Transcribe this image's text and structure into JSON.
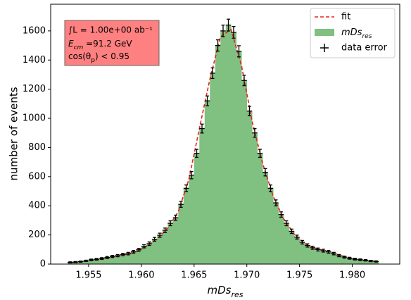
{
  "chart_data": {
    "type": "histogram",
    "bins": [
      1.953,
      1.9535,
      1.954,
      1.9545,
      1.955,
      1.9555,
      1.956,
      1.9565,
      1.957,
      1.9575,
      1.958,
      1.9585,
      1.959,
      1.9595,
      1.96,
      1.9605,
      1.961,
      1.9615,
      1.962,
      1.9625,
      1.963,
      1.9635,
      1.964,
      1.9645,
      1.965,
      1.9655,
      1.966,
      1.9665,
      1.967,
      1.9675,
      1.968,
      1.9685,
      1.969,
      1.9695,
      1.97,
      1.9705,
      1.971,
      1.9715,
      1.972,
      1.9725,
      1.973,
      1.9735,
      1.974,
      1.9745,
      1.975,
      1.9755,
      1.976,
      1.9765,
      1.977,
      1.9775,
      1.978,
      1.9785,
      1.979,
      1.9795,
      1.98,
      1.9805,
      1.981,
      1.9815,
      1.982,
      1.9825
    ],
    "series": [
      {
        "name": "fit",
        "color": "#e8201c",
        "dashed": true,
        "x": [
          1.9535,
          1.9545,
          1.9555,
          1.9565,
          1.9575,
          1.9585,
          1.9595,
          1.9605,
          1.9615,
          1.9625,
          1.9635,
          1.9645,
          1.9655,
          1.9665,
          1.9675,
          1.9685,
          1.9695,
          1.9705,
          1.9715,
          1.9725,
          1.9735,
          1.9745,
          1.9755,
          1.9765,
          1.9775,
          1.9785,
          1.9795,
          1.9805,
          1.9815,
          1.9825
        ],
        "values": [
          13,
          17,
          27,
          37,
          52,
          66,
          85,
          125,
          175,
          245,
          360,
          580,
          930,
          1270,
          1560,
          1610,
          1360,
          980,
          690,
          465,
          310,
          205,
          140,
          108,
          88,
          68,
          48,
          34,
          27,
          18
        ]
      },
      {
        "name": "mDs",
        "name_sub": "res",
        "color": "#80c080",
        "values": [
          12,
          14,
          17,
          22,
          29,
          33,
          38,
          45,
          52,
          58,
          66,
          72,
          84,
          98,
          122,
          140,
          170,
          198,
          232,
          280,
          318,
          410,
          520,
          610,
          760,
          930,
          1120,
          1310,
          1500,
          1600,
          1640,
          1590,
          1460,
          1260,
          1050,
          900,
          760,
          630,
          520,
          420,
          340,
          280,
          225,
          185,
          150,
          128,
          112,
          100,
          92,
          84,
          72,
          58,
          48,
          40,
          34,
          30,
          26,
          21,
          18
        ]
      },
      {
        "name": "data error",
        "color": "#000000",
        "errors": [
          3.5,
          3.7,
          4.1,
          4.7,
          5.4,
          5.7,
          6.2,
          6.7,
          7.2,
          7.6,
          8.1,
          8.5,
          9.2,
          9.9,
          11,
          11.8,
          13,
          14.1,
          15.2,
          16.7,
          17.8,
          20.2,
          22.8,
          24.7,
          27.6,
          30.5,
          33.5,
          36.2,
          38.7,
          40,
          40.5,
          39.9,
          38.2,
          35.5,
          32.4,
          30,
          27.6,
          25.1,
          22.8,
          20.5,
          18.4,
          16.7,
          15,
          13.6,
          12.2,
          11.3,
          10.6,
          10,
          9.6,
          9.2,
          8.5,
          7.6,
          6.9,
          6.3,
          5.8,
          5.5,
          5.1,
          4.6,
          4.2
        ]
      }
    ],
    "xlabel": "mDs",
    "xlabel_sub": "res",
    "ylabel": "number of events",
    "xlim": [
      1.9514,
      1.9845
    ],
    "ylim": [
      0,
      1783
    ],
    "xticks": [
      1.955,
      {
        "value": 1.96,
        "label": "1.960"
      },
      1.965,
      {
        "value": 1.97,
        "label": "1.970"
      },
      1.975,
      {
        "value": 1.98,
        "label": "1.980"
      }
    ],
    "yticks": [
      0,
      200,
      400,
      600,
      800,
      1000,
      1200,
      1400,
      1600
    ],
    "annotation": {
      "line1": "∫L = 1.00e+00 ab⁻¹",
      "line2_main": "E",
      "line2_sub": "cm",
      "line2_rest": " =91.2 GeV",
      "line3_main": "cos(θ",
      "line3_sub": "p",
      "line3_rest": ") < 0.95",
      "color": "#ff8080"
    },
    "legend": "upper right"
  }
}
